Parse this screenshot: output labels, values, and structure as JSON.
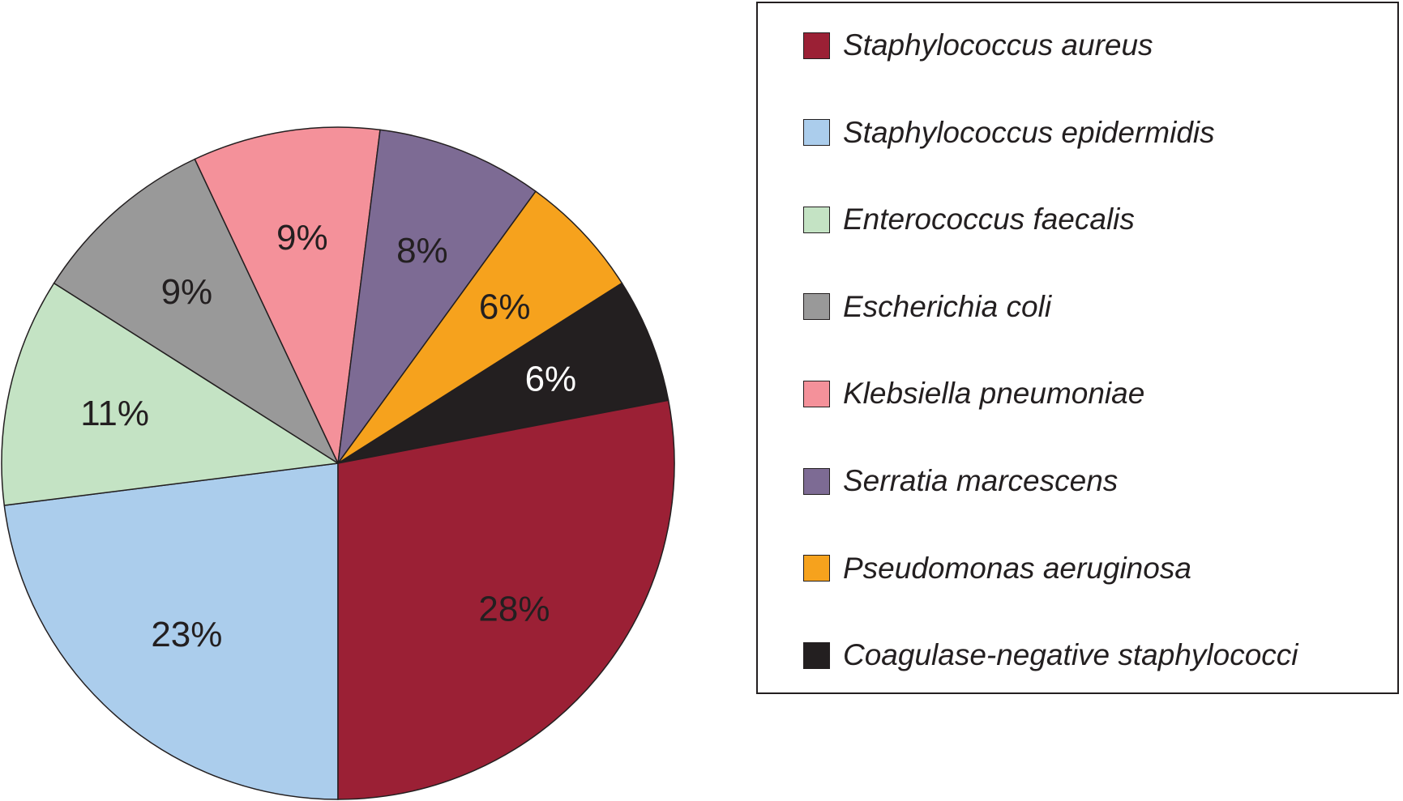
{
  "chart_data": {
    "type": "pie",
    "start": "bottom",
    "direction": "clockwise",
    "slices": [
      {
        "name": "Staphylococcus epidermidis",
        "value": 23,
        "label": "23%",
        "color": "#abcdec",
        "label_color": "#231f20"
      },
      {
        "name": "Enterococcus faecalis",
        "value": 11,
        "label": "11%",
        "color": "#c4e3c4",
        "label_color": "#231f20"
      },
      {
        "name": "Escherichia coli",
        "value": 9,
        "label": "9%",
        "color": "#999999",
        "label_color": "#231f20"
      },
      {
        "name": "Klebsiella pneumoniae",
        "value": 9,
        "label": "9%",
        "color": "#f4919a",
        "label_color": "#231f20"
      },
      {
        "name": "Serratia marcescens",
        "value": 8,
        "label": "8%",
        "color": "#7d6b94",
        "label_color": "#231f20"
      },
      {
        "name": "Pseudomonas aeruginosa",
        "value": 6,
        "label": "6%",
        "color": "#f6a21d",
        "label_color": "#231f20"
      },
      {
        "name": "Coagulase-negative staphylococci",
        "value": 6,
        "label": "6%",
        "color": "#231f20",
        "label_color": "#ffffff"
      },
      {
        "name": "Staphylococcus aureus",
        "value": 28,
        "label": "28%",
        "color": "#9b2035",
        "label_color": "#231f20"
      }
    ],
    "legend": {
      "position": "right",
      "entries": [
        {
          "name": "Staphylococcus aureus",
          "color": "#9b2035"
        },
        {
          "name": "Staphylococcus epidermidis",
          "color": "#abcdec"
        },
        {
          "name": "Enterococcus faecalis",
          "color": "#c4e3c4"
        },
        {
          "name": "Escherichia coli",
          "color": "#999999"
        },
        {
          "name": "Klebsiella pneumoniae",
          "color": "#f4919a"
        },
        {
          "name": "Serratia marcescens",
          "color": "#7d6b94"
        },
        {
          "name": "Pseudomonas aeruginosa",
          "color": "#f6a21d"
        },
        {
          "name": "Coagulase-negative staphylococci",
          "color": "#231f20"
        }
      ]
    }
  }
}
